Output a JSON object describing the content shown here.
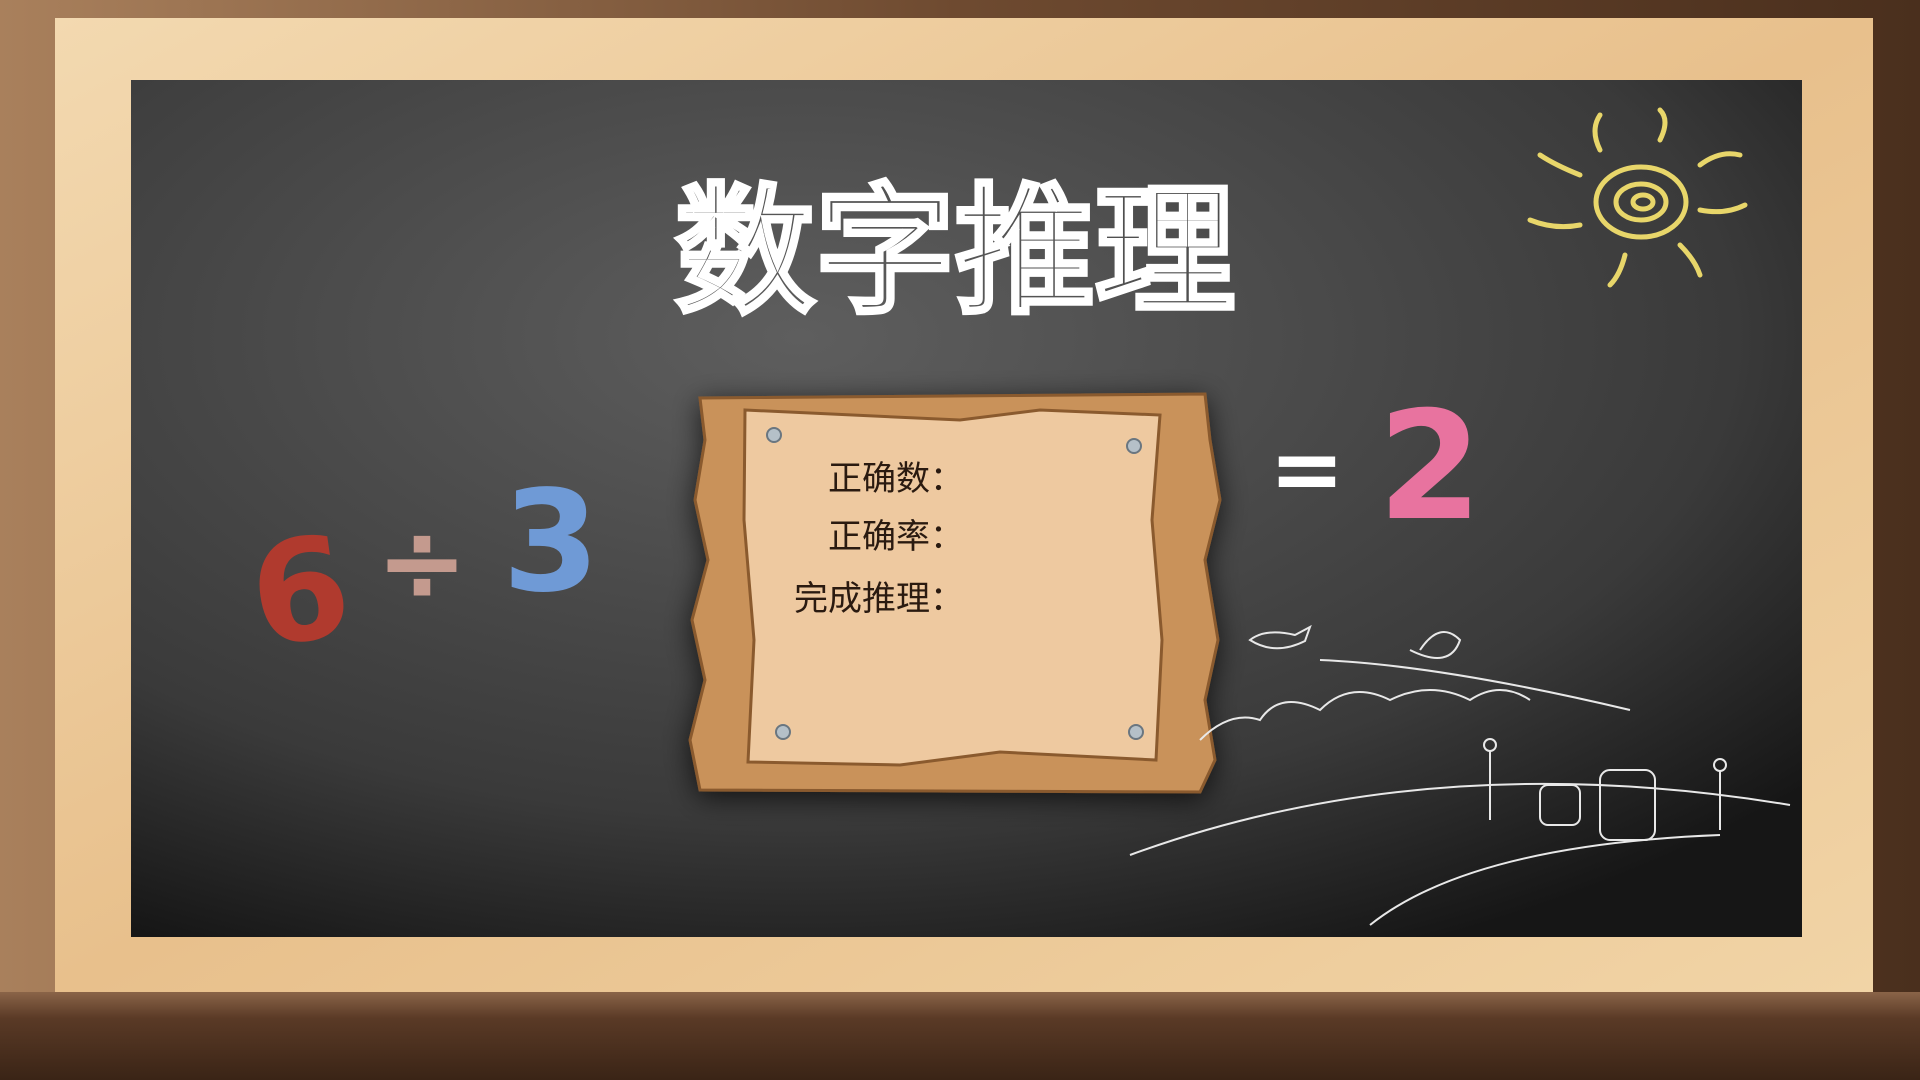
{
  "title": "数字推理",
  "equation": {
    "left": 6,
    "operator": "÷",
    "right": 3,
    "equals": "=",
    "result": 2
  },
  "board": {
    "lines": [
      "正确数：",
      "正确率：",
      "完成推理："
    ]
  }
}
